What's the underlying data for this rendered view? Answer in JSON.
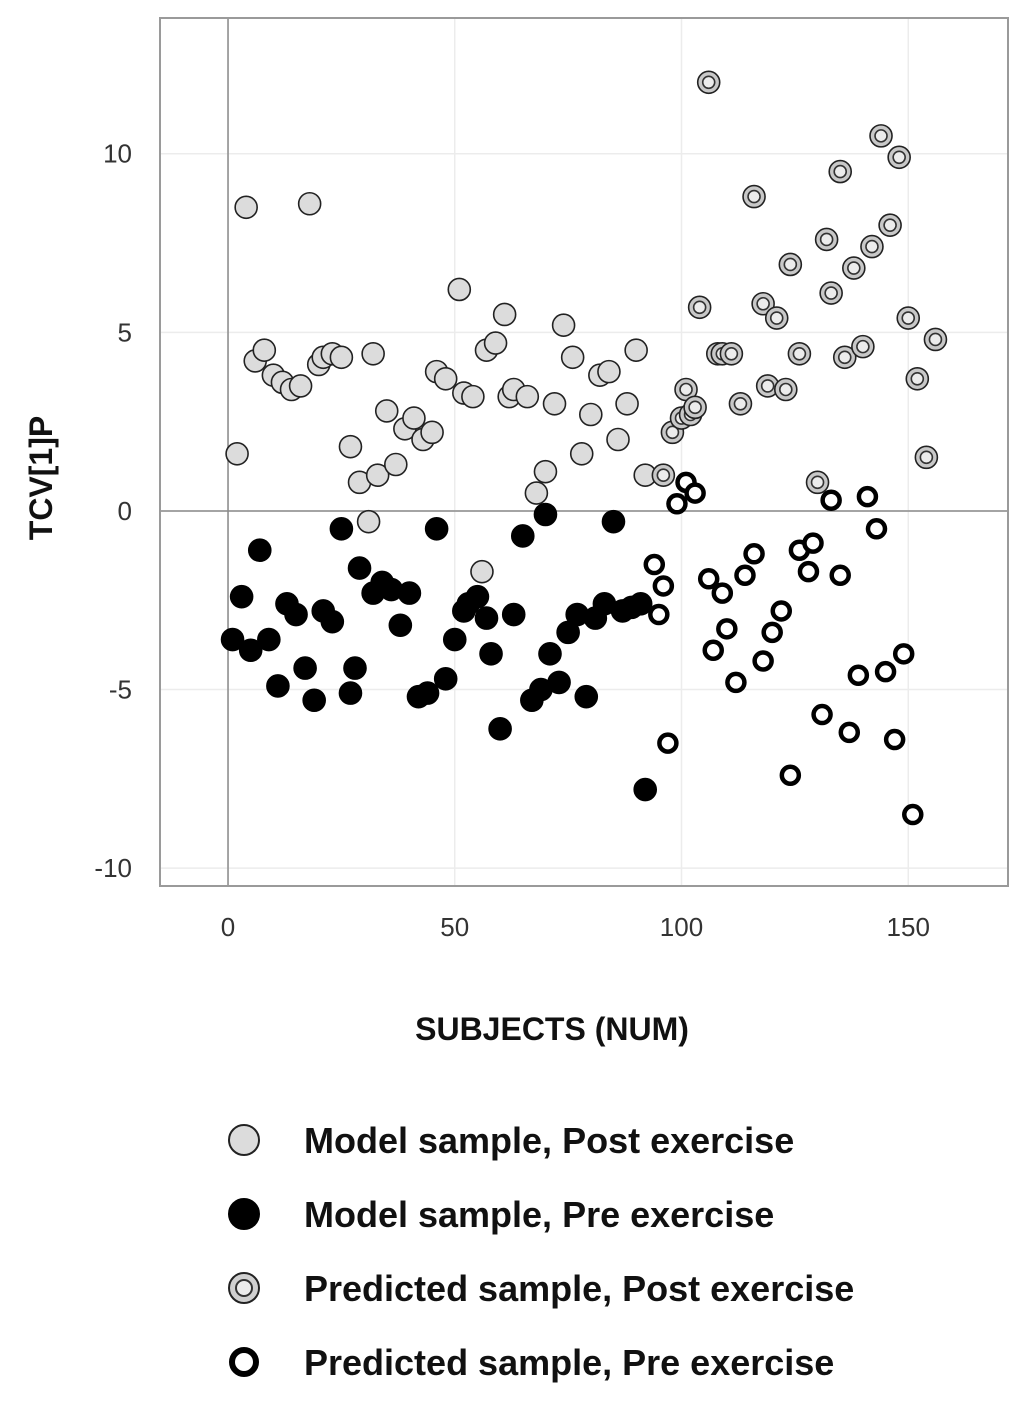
{
  "chart_data": {
    "type": "scatter",
    "title": "",
    "xlabel": "SUBJECTS (NUM)",
    "ylabel": "TCV[1]P",
    "xlim": [
      -15,
      172
    ],
    "ylim": [
      -10.5,
      13.8
    ],
    "xticks": [
      0,
      50,
      100,
      150
    ],
    "yticks": [
      -10,
      -5,
      0,
      5,
      10
    ],
    "grid": true,
    "reference_lines": {
      "x": 0,
      "y": 0
    },
    "legend_position": "bottom",
    "colors": {
      "model_post_fill": "#dcdcdc",
      "model_pre_fill": "#000000",
      "pred_post_fill": "#c8c8c8",
      "pred_pre_fill": "#ffffff",
      "edge": "#222222"
    },
    "series": [
      {
        "name": "Model sample, Post exercise",
        "marker": "filled-light",
        "points": [
          [
            2,
            1.6
          ],
          [
            4,
            8.5
          ],
          [
            6,
            4.2
          ],
          [
            8,
            4.5
          ],
          [
            10,
            3.8
          ],
          [
            12,
            3.6
          ],
          [
            14,
            3.4
          ],
          [
            16,
            3.5
          ],
          [
            18,
            8.6
          ],
          [
            20,
            4.1
          ],
          [
            21,
            4.3
          ],
          [
            23,
            4.4
          ],
          [
            25,
            4.3
          ],
          [
            27,
            1.8
          ],
          [
            29,
            0.8
          ],
          [
            31,
            -0.3
          ],
          [
            32,
            4.4
          ],
          [
            33,
            1.0
          ],
          [
            35,
            2.8
          ],
          [
            37,
            1.3
          ],
          [
            39,
            2.3
          ],
          [
            41,
            2.6
          ],
          [
            43,
            2.0
          ],
          [
            45,
            2.2
          ],
          [
            46,
            3.9
          ],
          [
            48,
            3.7
          ],
          [
            51,
            6.2
          ],
          [
            52,
            3.3
          ],
          [
            54,
            3.2
          ],
          [
            56,
            -1.7
          ],
          [
            57,
            4.5
          ],
          [
            59,
            4.7
          ],
          [
            61,
            5.5
          ],
          [
            62,
            3.2
          ],
          [
            63,
            3.4
          ],
          [
            66,
            3.2
          ],
          [
            68,
            0.5
          ],
          [
            70,
            1.1
          ],
          [
            72,
            3.0
          ],
          [
            74,
            5.2
          ],
          [
            76,
            4.3
          ],
          [
            78,
            1.6
          ],
          [
            80,
            2.7
          ],
          [
            82,
            3.8
          ],
          [
            84,
            3.9
          ],
          [
            86,
            2.0
          ],
          [
            88,
            3.0
          ],
          [
            90,
            4.5
          ],
          [
            92,
            1.0
          ]
        ]
      },
      {
        "name": "Model sample, Pre exercise",
        "marker": "filled-dark",
        "points": [
          [
            1,
            -3.6
          ],
          [
            3,
            -2.4
          ],
          [
            5,
            -3.9
          ],
          [
            7,
            -1.1
          ],
          [
            9,
            -3.6
          ],
          [
            11,
            -4.9
          ],
          [
            13,
            -2.6
          ],
          [
            15,
            -2.9
          ],
          [
            17,
            -4.4
          ],
          [
            19,
            -5.3
          ],
          [
            21,
            -2.8
          ],
          [
            23,
            -3.1
          ],
          [
            25,
            -0.5
          ],
          [
            27,
            -5.1
          ],
          [
            28,
            -4.4
          ],
          [
            29,
            -1.6
          ],
          [
            32,
            -2.3
          ],
          [
            34,
            -2.0
          ],
          [
            36,
            -2.2
          ],
          [
            38,
            -3.2
          ],
          [
            40,
            -2.3
          ],
          [
            42,
            -5.2
          ],
          [
            44,
            -5.1
          ],
          [
            46,
            -0.5
          ],
          [
            48,
            -4.7
          ],
          [
            50,
            -3.6
          ],
          [
            52,
            -2.8
          ],
          [
            53,
            -2.6
          ],
          [
            55,
            -2.4
          ],
          [
            57,
            -3.0
          ],
          [
            58,
            -4.0
          ],
          [
            60,
            -6.1
          ],
          [
            63,
            -2.9
          ],
          [
            65,
            -0.7
          ],
          [
            67,
            -5.3
          ],
          [
            69,
            -5.0
          ],
          [
            70,
            -0.1
          ],
          [
            71,
            -4.0
          ],
          [
            73,
            -4.8
          ],
          [
            75,
            -3.4
          ],
          [
            77,
            -2.9
          ],
          [
            79,
            -5.2
          ],
          [
            81,
            -3.0
          ],
          [
            83,
            -2.6
          ],
          [
            85,
            -0.3
          ],
          [
            87,
            -2.8
          ],
          [
            89,
            -2.7
          ],
          [
            91,
            -2.6
          ],
          [
            92,
            -7.8
          ]
        ]
      },
      {
        "name": "Predicted sample, Post exercise",
        "marker": "ring-light",
        "points": [
          [
            96,
            1.0
          ],
          [
            98,
            2.2
          ],
          [
            100,
            2.6
          ],
          [
            101,
            3.4
          ],
          [
            102,
            2.7
          ],
          [
            103,
            2.9
          ],
          [
            104,
            5.7
          ],
          [
            106,
            12.0
          ],
          [
            108,
            4.4
          ],
          [
            109,
            4.4
          ],
          [
            111,
            4.4
          ],
          [
            113,
            3.0
          ],
          [
            116,
            8.8
          ],
          [
            118,
            5.8
          ],
          [
            119,
            3.5
          ],
          [
            121,
            5.4
          ],
          [
            123,
            3.4
          ],
          [
            124,
            6.9
          ],
          [
            126,
            4.4
          ],
          [
            130,
            0.8
          ],
          [
            132,
            7.6
          ],
          [
            133,
            6.1
          ],
          [
            135,
            9.5
          ],
          [
            136,
            4.3
          ],
          [
            138,
            6.8
          ],
          [
            140,
            4.6
          ],
          [
            142,
            7.4
          ],
          [
            144,
            10.5
          ],
          [
            146,
            8.0
          ],
          [
            148,
            9.9
          ],
          [
            150,
            5.4
          ],
          [
            152,
            3.7
          ],
          [
            154,
            1.5
          ],
          [
            156,
            4.8
          ]
        ]
      },
      {
        "name": "Predicted sample, Pre exercise",
        "marker": "ring-dark",
        "points": [
          [
            94,
            -1.5
          ],
          [
            95,
            -2.9
          ],
          [
            96,
            -2.1
          ],
          [
            97,
            -6.5
          ],
          [
            99,
            0.2
          ],
          [
            101,
            0.8
          ],
          [
            103,
            0.5
          ],
          [
            106,
            -1.9
          ],
          [
            107,
            -3.9
          ],
          [
            109,
            -2.3
          ],
          [
            110,
            -3.3
          ],
          [
            112,
            -4.8
          ],
          [
            114,
            -1.8
          ],
          [
            116,
            -1.2
          ],
          [
            118,
            -4.2
          ],
          [
            120,
            -3.4
          ],
          [
            122,
            -2.8
          ],
          [
            124,
            -7.4
          ],
          [
            126,
            -1.1
          ],
          [
            128,
            -1.7
          ],
          [
            129,
            -0.9
          ],
          [
            131,
            -5.7
          ],
          [
            133,
            0.3
          ],
          [
            135,
            -1.8
          ],
          [
            137,
            -6.2
          ],
          [
            139,
            -4.6
          ],
          [
            141,
            0.4
          ],
          [
            143,
            -0.5
          ],
          [
            145,
            -4.5
          ],
          [
            147,
            -6.4
          ],
          [
            149,
            -4.0
          ],
          [
            151,
            -8.5
          ]
        ]
      }
    ]
  }
}
